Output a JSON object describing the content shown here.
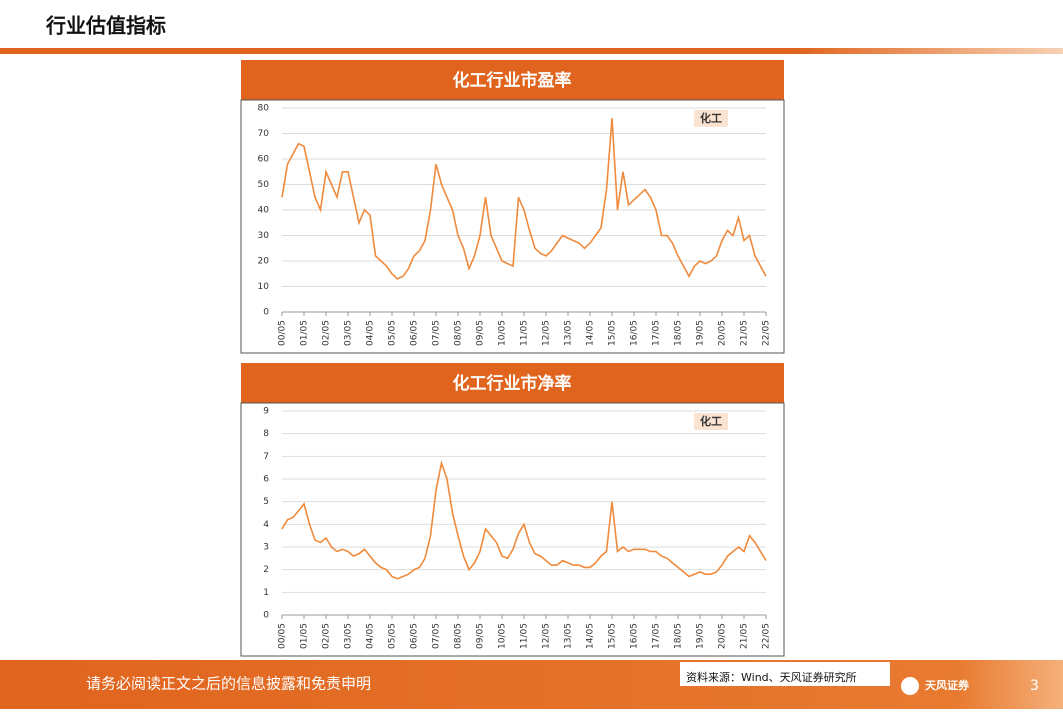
{
  "header": {
    "title": "行业估值指标"
  },
  "chart_data": [
    {
      "type": "line",
      "title": "化工行业市盈率",
      "categories": [
        "00/05",
        null,
        null,
        null,
        "01/05",
        null,
        null,
        null,
        "02/05",
        null,
        null,
        null,
        "03/05",
        null,
        null,
        null,
        "04/05",
        null,
        null,
        null,
        "05/05",
        null,
        null,
        null,
        "06/05",
        null,
        null,
        null,
        "07/05",
        null,
        null,
        null,
        "08/05",
        null,
        null,
        null,
        "09/05",
        null,
        null,
        null,
        "10/05",
        null,
        null,
        null,
        "11/05",
        null,
        null,
        null,
        "12/05",
        null,
        null,
        null,
        "13/05",
        null,
        null,
        null,
        "14/05",
        null,
        null,
        null,
        "15/05",
        null,
        null,
        null,
        "16/05",
        null,
        null,
        null,
        "17/05",
        null,
        null,
        null,
        "18/05",
        null,
        null,
        null,
        "19/05",
        null,
        null,
        null,
        "20/05",
        null,
        null,
        null,
        "21/05",
        null,
        null,
        null,
        "22/05"
      ],
      "series": [
        {
          "name": "化工",
          "color": "#f08a3c",
          "values": [
            45,
            58,
            62,
            66,
            65,
            55,
            45,
            40,
            55,
            50,
            45,
            55,
            55,
            45,
            35,
            40,
            38,
            22,
            20,
            18,
            15,
            13,
            14,
            17,
            22,
            24,
            28,
            40,
            58,
            50,
            45,
            40,
            30,
            25,
            17,
            22,
            30,
            45,
            30,
            25,
            20,
            19,
            18,
            45,
            40,
            32,
            25,
            23,
            22,
            24,
            27,
            30,
            29,
            28,
            27,
            25,
            27,
            30,
            33,
            48,
            76,
            40,
            55,
            42,
            44,
            46,
            48,
            45,
            40,
            30,
            30,
            27,
            22,
            18,
            14,
            18,
            20,
            19,
            20,
            22,
            28,
            32,
            30,
            37,
            28,
            30,
            22,
            18,
            14
          ]
        }
      ],
      "ylim": [
        0,
        80
      ],
      "yticks": [
        0,
        10,
        20,
        30,
        40,
        50,
        60,
        70,
        80
      ],
      "grid": true,
      "legend": "upper right"
    },
    {
      "type": "line",
      "title": "化工行业市净率",
      "categories": [
        "00/05",
        null,
        null,
        null,
        "01/05",
        null,
        null,
        null,
        "02/05",
        null,
        null,
        null,
        "03/05",
        null,
        null,
        null,
        "04/05",
        null,
        null,
        null,
        "05/05",
        null,
        null,
        null,
        "06/05",
        null,
        null,
        null,
        "07/05",
        null,
        null,
        null,
        "08/05",
        null,
        null,
        null,
        "09/05",
        null,
        null,
        null,
        "10/05",
        null,
        null,
        null,
        "11/05",
        null,
        null,
        null,
        "12/05",
        null,
        null,
        null,
        "13/05",
        null,
        null,
        null,
        "14/05",
        null,
        null,
        null,
        "15/05",
        null,
        null,
        null,
        "16/05",
        null,
        null,
        null,
        "17/05",
        null,
        null,
        null,
        "18/05",
        null,
        null,
        null,
        "19/05",
        null,
        null,
        null,
        "20/05",
        null,
        null,
        null,
        "21/05",
        null,
        null,
        null,
        "22/05"
      ],
      "series": [
        {
          "name": "化工",
          "color": "#f08a3c",
          "values": [
            3.8,
            4.2,
            4.3,
            4.6,
            4.9,
            4.0,
            3.3,
            3.2,
            3.4,
            3.0,
            2.8,
            2.9,
            2.8,
            2.6,
            2.7,
            2.9,
            2.6,
            2.3,
            2.1,
            2.0,
            1.7,
            1.6,
            1.7,
            1.8,
            2.0,
            2.1,
            2.5,
            3.5,
            5.5,
            6.7,
            6.0,
            4.5,
            3.5,
            2.6,
            2.0,
            2.3,
            2.8,
            3.8,
            3.5,
            3.2,
            2.6,
            2.5,
            2.9,
            3.6,
            4.0,
            3.2,
            2.7,
            2.6,
            2.4,
            2.2,
            2.2,
            2.4,
            2.3,
            2.2,
            2.2,
            2.1,
            2.1,
            2.3,
            2.6,
            2.8,
            5.0,
            2.8,
            3.0,
            2.8,
            2.9,
            2.9,
            2.9,
            2.8,
            2.8,
            2.6,
            2.5,
            2.3,
            2.1,
            1.9,
            1.7,
            1.8,
            1.9,
            1.8,
            1.8,
            1.9,
            2.2,
            2.6,
            2.8,
            3.0,
            2.8,
            3.5,
            3.2,
            2.8,
            2.4
          ]
        }
      ],
      "ylim": [
        0,
        9
      ],
      "yticks": [
        0,
        1,
        2,
        3,
        4,
        5,
        6,
        7,
        8,
        9
      ],
      "grid": true,
      "legend": "upper right"
    }
  ],
  "footer": {
    "disclaimer": "请务必阅读正文之后的信息披露和免责申明",
    "source": "资料来源：Wind、天风证券研究所",
    "logo": "天风证券",
    "page": "3"
  }
}
